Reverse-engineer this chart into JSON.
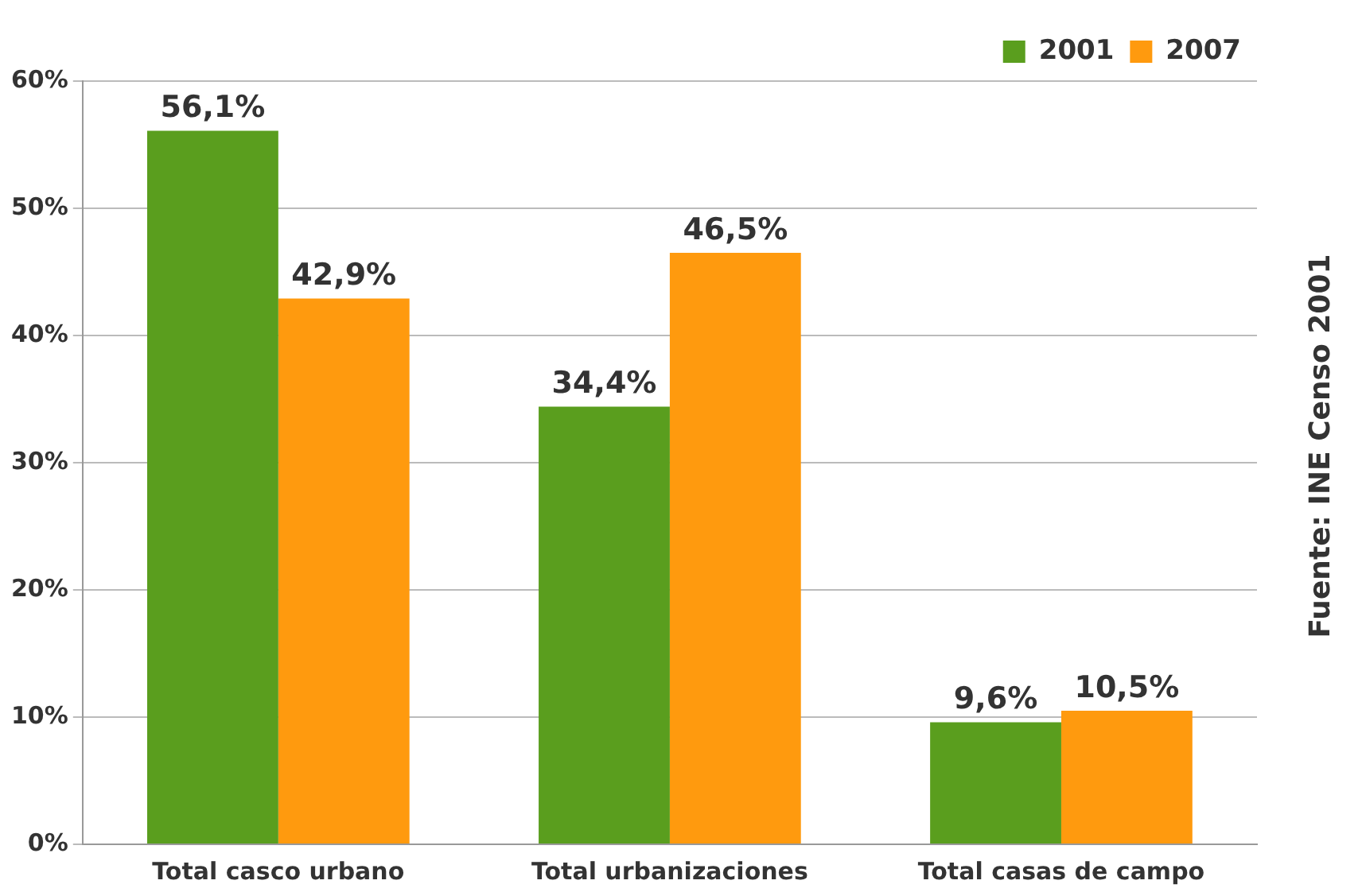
{
  "chart_data": {
    "type": "bar",
    "categories": [
      "Total casco urbano",
      "Total urbanizaciones",
      "Total casas de campo"
    ],
    "series": [
      {
        "name": "2001",
        "color": "#5a9e1e",
        "values": [
          56.1,
          34.4,
          9.6
        ],
        "value_labels": [
          "56,1%",
          "34,4%",
          "9,6%"
        ]
      },
      {
        "name": "2007",
        "color": "#ff9a0e",
        "values": [
          42.9,
          46.5,
          10.5
        ],
        "value_labels": [
          "42,9%",
          "46,5%",
          "10,5%"
        ]
      }
    ],
    "ylim": [
      0,
      60
    ],
    "yticks": [
      {
        "value": 0,
        "label": "0%"
      },
      {
        "value": 10,
        "label": "10%"
      },
      {
        "value": 20,
        "label": "20%"
      },
      {
        "value": 30,
        "label": "30%"
      },
      {
        "value": 40,
        "label": "40%"
      },
      {
        "value": 50,
        "label": "50%"
      },
      {
        "value": 60,
        "label": "60%"
      }
    ],
    "grid": "y",
    "legend": "top right",
    "annotations": [
      "Fuente: INE Censo 2001"
    ]
  }
}
